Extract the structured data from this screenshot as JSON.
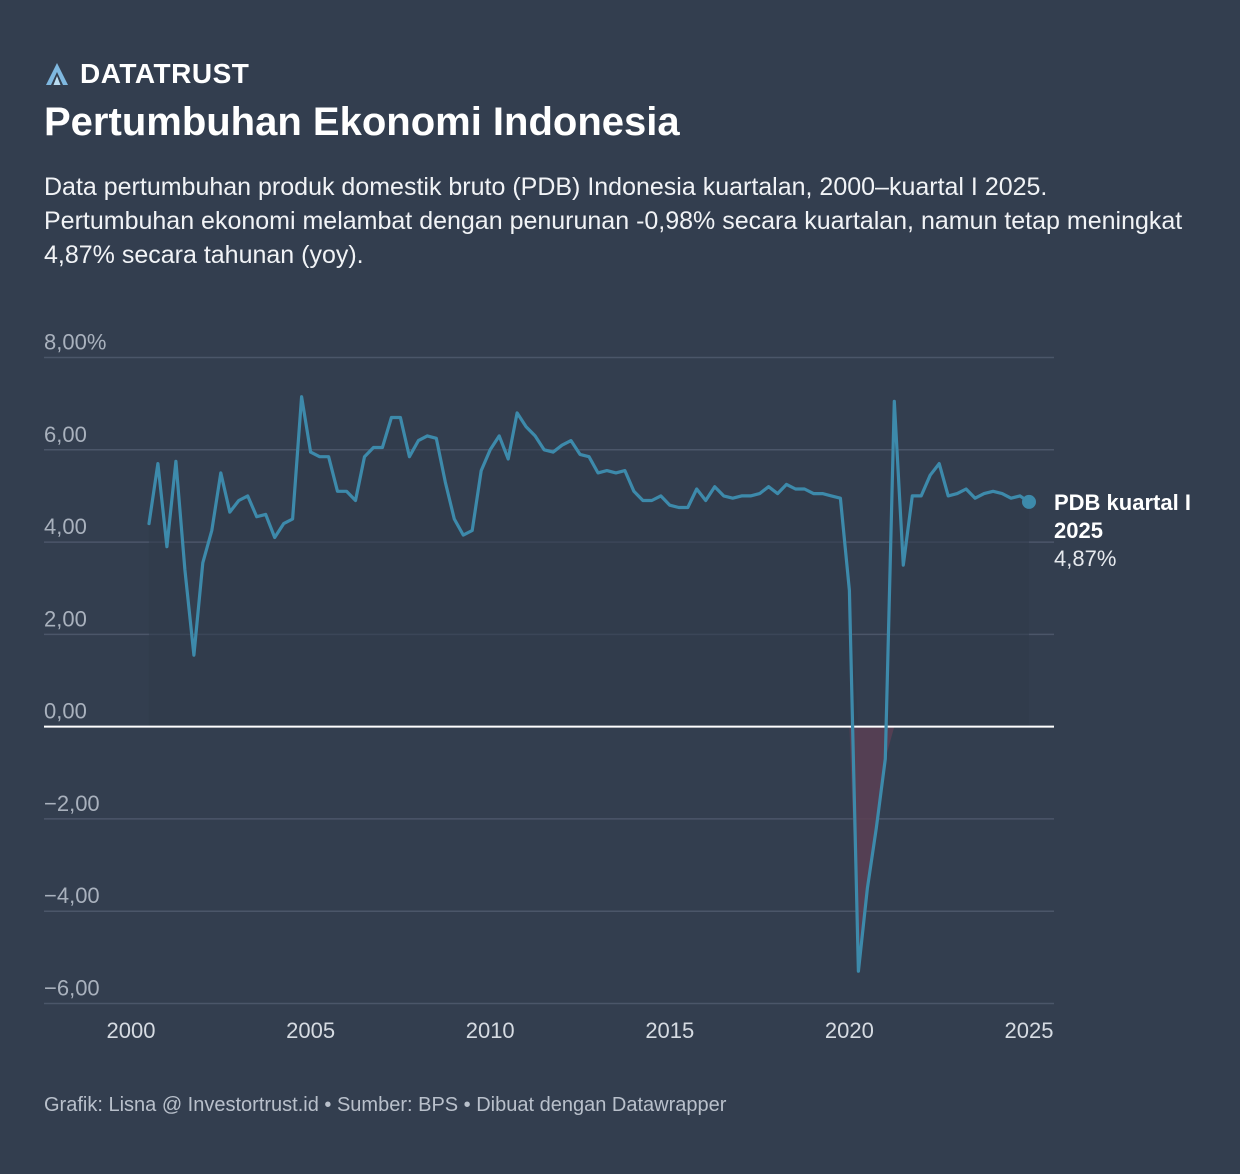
{
  "brand": {
    "name": "DATATRUST",
    "logo_icon": "datatrust-a-logo-icon",
    "logo_color": "#7fb8e0"
  },
  "title": "Pertumbuhan Ekonomi Indonesia",
  "subtitle": "Data pertumbuhan produk domestik bruto (PDB) Indonesia kuartalan, 2000–kuartal I 2025. Pertumbuhan ekonomi melambat dengan penurunan -0,98% secara kuartalan, namun tetap meningkat 4,87% secara tahunan (yoy).",
  "footer": "Grafik: Lisna @ Investortrust.id • Sumber: BPS • Dibuat dengan Datawrapper",
  "colors": {
    "background": "#333e4f",
    "line": "#3d8aab",
    "grid": "#4b5669",
    "zero_line": "#ffffff",
    "tick_text": "#a9b1bd",
    "negative_fill": "#5a3f54"
  },
  "chart_data": {
    "type": "line",
    "title": "Pertumbuhan Ekonomi Indonesia",
    "xlabel": "",
    "ylabel": "",
    "xlim": [
      1999.7,
      2025.0
    ],
    "ylim": [
      -6.5,
      8.0
    ],
    "grid": true,
    "y_ticks": [
      {
        "value": 8,
        "label": "8,00%"
      },
      {
        "value": 6,
        "label": "6,00"
      },
      {
        "value": 4,
        "label": "4,00"
      },
      {
        "value": 2,
        "label": "2,00"
      },
      {
        "value": 0,
        "label": "0,00"
      },
      {
        "value": -2,
        "label": "−2,00"
      },
      {
        "value": -4,
        "label": "−4,00"
      },
      {
        "value": -6,
        "label": "−6,00"
      }
    ],
    "x_ticks": [
      {
        "value": 2000,
        "label": "2000"
      },
      {
        "value": 2005,
        "label": "2005"
      },
      {
        "value": 2010,
        "label": "2010"
      },
      {
        "value": 2015,
        "label": "2015"
      },
      {
        "value": 2020,
        "label": "2020"
      },
      {
        "value": 2025,
        "label": "2025"
      }
    ],
    "series": [
      {
        "points": [
          [
            2000.5,
            4.4
          ],
          [
            2000.75,
            5.7
          ],
          [
            2001.0,
            3.9
          ],
          [
            2001.25,
            5.75
          ],
          [
            2001.5,
            3.4
          ],
          [
            2001.75,
            1.55
          ],
          [
            2002.0,
            3.55
          ],
          [
            2002.25,
            4.25
          ],
          [
            2002.5,
            5.5
          ],
          [
            2002.75,
            4.65
          ],
          [
            2003.0,
            4.9
          ],
          [
            2003.25,
            5.0
          ],
          [
            2003.5,
            4.55
          ],
          [
            2003.75,
            4.6
          ],
          [
            2004.0,
            4.1
          ],
          [
            2004.25,
            4.4
          ],
          [
            2004.5,
            4.5
          ],
          [
            2004.75,
            7.15
          ],
          [
            2005.0,
            5.95
          ],
          [
            2005.25,
            5.85
          ],
          [
            2005.5,
            5.85
          ],
          [
            2005.75,
            5.1
          ],
          [
            2006.0,
            5.1
          ],
          [
            2006.25,
            4.9
          ],
          [
            2006.5,
            5.85
          ],
          [
            2006.75,
            6.05
          ],
          [
            2007.0,
            6.05
          ],
          [
            2007.25,
            6.7
          ],
          [
            2007.5,
            6.7
          ],
          [
            2007.75,
            5.85
          ],
          [
            2008.0,
            6.2
          ],
          [
            2008.25,
            6.3
          ],
          [
            2008.5,
            6.25
          ],
          [
            2008.75,
            5.3
          ],
          [
            2009.0,
            4.5
          ],
          [
            2009.25,
            4.15
          ],
          [
            2009.5,
            4.25
          ],
          [
            2009.75,
            5.55
          ],
          [
            2010.0,
            6.0
          ],
          [
            2010.25,
            6.3
          ],
          [
            2010.5,
            5.8
          ],
          [
            2010.75,
            6.8
          ],
          [
            2011.0,
            6.5
          ],
          [
            2011.25,
            6.3
          ],
          [
            2011.5,
            6.0
          ],
          [
            2011.75,
            5.95
          ],
          [
            2012.0,
            6.1
          ],
          [
            2012.25,
            6.2
          ],
          [
            2012.5,
            5.9
          ],
          [
            2012.75,
            5.85
          ],
          [
            2013.0,
            5.5
          ],
          [
            2013.25,
            5.55
          ],
          [
            2013.5,
            5.5
          ],
          [
            2013.75,
            5.55
          ],
          [
            2014.0,
            5.1
          ],
          [
            2014.25,
            4.9
          ],
          [
            2014.5,
            4.9
          ],
          [
            2014.75,
            5.0
          ],
          [
            2015.0,
            4.8
          ],
          [
            2015.25,
            4.75
          ],
          [
            2015.5,
            4.75
          ],
          [
            2015.75,
            5.15
          ],
          [
            2016.0,
            4.9
          ],
          [
            2016.25,
            5.2
          ],
          [
            2016.5,
            5.0
          ],
          [
            2016.75,
            4.95
          ],
          [
            2017.0,
            5.0
          ],
          [
            2017.25,
            5.0
          ],
          [
            2017.5,
            5.05
          ],
          [
            2017.75,
            5.2
          ],
          [
            2018.0,
            5.05
          ],
          [
            2018.25,
            5.25
          ],
          [
            2018.5,
            5.15
          ],
          [
            2018.75,
            5.15
          ],
          [
            2019.0,
            5.05
          ],
          [
            2019.25,
            5.05
          ],
          [
            2019.5,
            5.0
          ],
          [
            2019.75,
            4.95
          ],
          [
            2020.0,
            2.95
          ],
          [
            2020.25,
            -5.3
          ],
          [
            2020.5,
            -3.5
          ],
          [
            2020.75,
            -2.2
          ],
          [
            2021.0,
            -0.7
          ],
          [
            2021.25,
            7.05
          ],
          [
            2021.5,
            3.5
          ],
          [
            2021.75,
            5.0
          ],
          [
            2022.0,
            5.0
          ],
          [
            2022.25,
            5.45
          ],
          [
            2022.5,
            5.7
          ],
          [
            2022.75,
            5.0
          ],
          [
            2023.0,
            5.05
          ],
          [
            2023.25,
            5.15
          ],
          [
            2023.5,
            4.95
          ],
          [
            2023.75,
            5.05
          ],
          [
            2024.0,
            5.1
          ],
          [
            2024.25,
            5.05
          ],
          [
            2024.5,
            4.95
          ],
          [
            2024.75,
            5.0
          ],
          [
            2025.0,
            4.87
          ]
        ]
      }
    ],
    "annotation": {
      "label_line1": "PDB kuartal I",
      "label_line2": "2025",
      "value_label": "4,87%",
      "x": 2025.0,
      "y": 4.87
    }
  }
}
